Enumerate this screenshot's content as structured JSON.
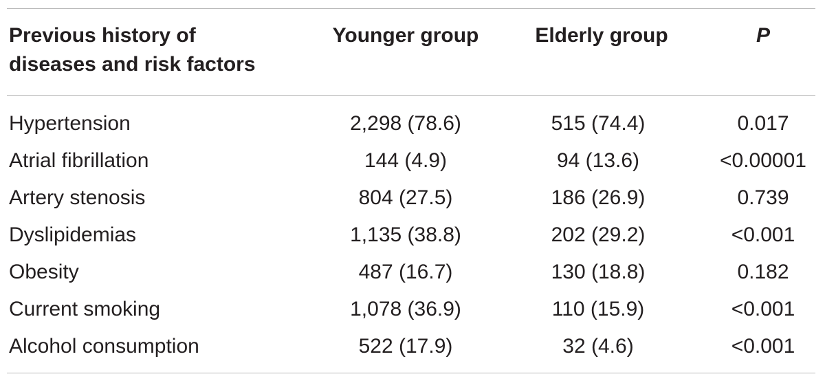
{
  "table": {
    "headers": {
      "col0_line1": "Previous history of",
      "col0_line2": "diseases and risk factors",
      "col1": "Younger group",
      "col2": "Elderly group",
      "col3": "P"
    },
    "rows": [
      {
        "label": "Hypertension",
        "younger": "2,298 (78.6)",
        "elderly": "515 (74.4)",
        "p": "0.017"
      },
      {
        "label": "Atrial fibrillation",
        "younger": "144 (4.9)",
        "elderly": "94 (13.6)",
        "p": "<0.00001"
      },
      {
        "label": "Artery stenosis",
        "younger": "804 (27.5)",
        "elderly": "186 (26.9)",
        "p": "0.739"
      },
      {
        "label": "Dyslipidemias",
        "younger": "1,135 (38.8)",
        "elderly": "202 (29.2)",
        "p": "<0.001"
      },
      {
        "label": "Obesity",
        "younger": "487 (16.7)",
        "elderly": "130 (18.8)",
        "p": "0.182"
      },
      {
        "label": "Current smoking",
        "younger": "1,078 (36.9)",
        "elderly": "110 (15.9)",
        "p": "<0.001"
      },
      {
        "label": "Alcohol consumption",
        "younger": "522 (17.9)",
        "elderly": "32 (4.6)",
        "p": "<0.001"
      }
    ]
  }
}
